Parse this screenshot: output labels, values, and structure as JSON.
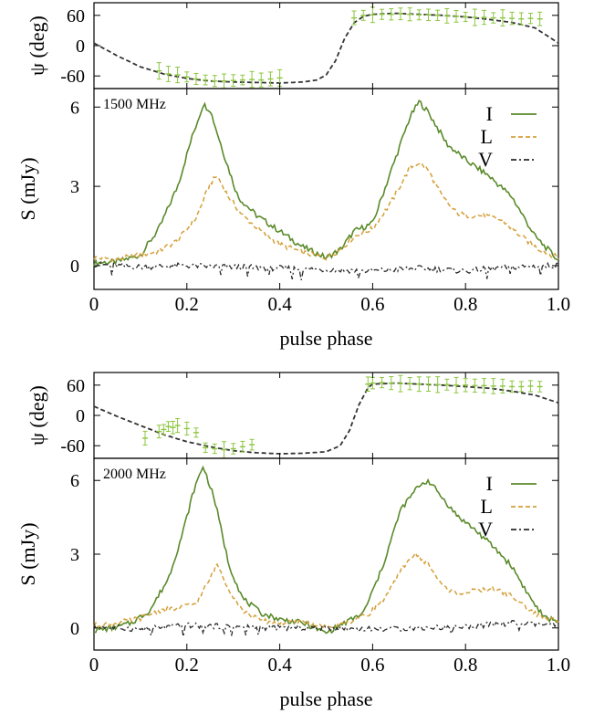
{
  "colors": {
    "I": "#5a8a2a",
    "L": "#d4a03a",
    "V": "#2a2a2a",
    "pa_points": "#8cc63f",
    "pa_model": "#333333"
  },
  "chart_data": [
    {
      "type": "line",
      "frequency_label": "1500 MHz",
      "xlabel": "pulse phase",
      "pa_ylabel": "ψ (deg)",
      "flux_ylabel": "S (mJy)",
      "xlim": [
        0,
        1
      ],
      "x_ticks": [
        "0",
        "0.2",
        "0.4",
        "0.6",
        "0.8",
        "1.0"
      ],
      "pa_ylim": [
        -85,
        85
      ],
      "pa_ticks": [
        "60",
        "0",
        "-60"
      ],
      "flux_ylim": [
        -0.9,
        6.7
      ],
      "flux_ticks": [
        "6",
        "3",
        "0"
      ],
      "legend": [
        {
          "key": "I",
          "label": "I"
        },
        {
          "key": "L",
          "label": "L"
        },
        {
          "key": "V",
          "label": "V"
        }
      ],
      "series": [
        {
          "key": "I",
          "x": [
            0,
            0.05,
            0.1,
            0.14,
            0.18,
            0.21,
            0.235,
            0.25,
            0.28,
            0.31,
            0.35,
            0.4,
            0.45,
            0.5,
            0.53,
            0.56,
            0.6,
            0.64,
            0.68,
            0.7,
            0.72,
            0.76,
            0.8,
            0.85,
            0.9,
            0.95,
            1.0
          ],
          "y": [
            0.1,
            0.15,
            0.4,
            1.4,
            3.0,
            4.8,
            6.1,
            5.9,
            4.2,
            2.6,
            1.9,
            1.3,
            0.7,
            0.3,
            0.6,
            1.3,
            1.6,
            3.6,
            5.6,
            6.2,
            5.8,
            4.6,
            4.0,
            3.4,
            2.6,
            1.1,
            0.2
          ]
        },
        {
          "key": "L",
          "x": [
            0,
            0.05,
            0.1,
            0.14,
            0.18,
            0.22,
            0.25,
            0.265,
            0.29,
            0.32,
            0.36,
            0.4,
            0.45,
            0.5,
            0.53,
            0.56,
            0.6,
            0.64,
            0.68,
            0.7,
            0.72,
            0.75,
            0.78,
            0.8,
            0.84,
            0.88,
            0.92,
            0.96,
            1.0
          ],
          "y": [
            0.3,
            0.25,
            0.4,
            0.55,
            0.95,
            1.8,
            3.1,
            3.4,
            2.6,
            1.9,
            1.3,
            0.8,
            0.5,
            0.3,
            0.6,
            1.1,
            1.4,
            2.4,
            3.7,
            3.9,
            3.6,
            2.6,
            2.0,
            1.9,
            1.9,
            1.7,
            1.1,
            0.6,
            0.3
          ]
        },
        {
          "key": "V",
          "x": [
            0,
            0.1,
            0.2,
            0.3,
            0.4,
            0.5,
            0.6,
            0.7,
            0.8,
            0.9,
            1.0
          ],
          "y": [
            0.05,
            -0.05,
            0.0,
            -0.05,
            -0.1,
            -0.15,
            -0.2,
            -0.1,
            -0.2,
            -0.05,
            0.0
          ]
        }
      ],
      "pa_model": {
        "x": [
          0,
          0.05,
          0.1,
          0.15,
          0.2,
          0.25,
          0.3,
          0.35,
          0.4,
          0.45,
          0.48,
          0.5,
          0.52,
          0.54,
          0.56,
          0.58,
          0.6,
          0.65,
          0.7,
          0.75,
          0.8,
          0.85,
          0.9,
          0.95,
          1.0
        ],
        "y": [
          5,
          -20,
          -42,
          -56,
          -65,
          -70,
          -72,
          -73,
          -74,
          -72,
          -68,
          -58,
          -30,
          15,
          45,
          58,
          62,
          64,
          62,
          60,
          57,
          52,
          46,
          35,
          5
        ]
      },
      "pa_points": {
        "x": [
          0.14,
          0.16,
          0.18,
          0.2,
          0.22,
          0.24,
          0.26,
          0.28,
          0.3,
          0.32,
          0.34,
          0.36,
          0.38,
          0.4,
          0.56,
          0.58,
          0.6,
          0.62,
          0.64,
          0.66,
          0.68,
          0.7,
          0.72,
          0.74,
          0.76,
          0.78,
          0.8,
          0.82,
          0.84,
          0.86,
          0.88,
          0.9,
          0.92,
          0.94,
          0.96
        ],
        "y": [
          -50,
          -56,
          -58,
          -62,
          -66,
          -68,
          -70,
          -70,
          -69,
          -68,
          -67,
          -68,
          -66,
          -64,
          55,
          60,
          61,
          62,
          62,
          63,
          62,
          61,
          61,
          60,
          59,
          58,
          57,
          56,
          56,
          55,
          55,
          54,
          53,
          54,
          53
        ]
      }
    },
    {
      "type": "line",
      "frequency_label": "2000 MHz",
      "xlabel": "pulse phase",
      "pa_ylabel": "ψ (deg)",
      "flux_ylabel": "S (mJy)",
      "xlim": [
        0,
        1
      ],
      "x_ticks": [
        "0",
        "0.2",
        "0.4",
        "0.6",
        "0.8",
        "1.0"
      ],
      "pa_ylim": [
        -85,
        85
      ],
      "pa_ticks": [
        "60",
        "0",
        "-60"
      ],
      "flux_ylim": [
        -0.9,
        6.9
      ],
      "flux_ticks": [
        "6",
        "3",
        "0"
      ],
      "legend": [
        {
          "key": "I",
          "label": "I"
        },
        {
          "key": "L",
          "label": "L"
        },
        {
          "key": "V",
          "label": "V"
        }
      ],
      "series": [
        {
          "key": "I",
          "x": [
            0,
            0.04,
            0.08,
            0.12,
            0.16,
            0.19,
            0.215,
            0.235,
            0.26,
            0.29,
            0.32,
            0.36,
            0.4,
            0.45,
            0.5,
            0.54,
            0.58,
            0.62,
            0.66,
            0.7,
            0.72,
            0.75,
            0.78,
            0.82,
            0.86,
            0.9,
            0.94,
            0.97,
            1.0
          ],
          "y": [
            -0.1,
            0.0,
            0.2,
            0.7,
            2.0,
            3.8,
            5.6,
            6.6,
            5.2,
            2.6,
            1.2,
            0.6,
            0.35,
            0.2,
            -0.2,
            0.2,
            0.6,
            2.4,
            4.8,
            5.8,
            6.0,
            5.3,
            4.6,
            4.0,
            3.3,
            2.5,
            1.2,
            0.4,
            0.3
          ]
        },
        {
          "key": "L",
          "x": [
            0,
            0.05,
            0.1,
            0.14,
            0.18,
            0.22,
            0.25,
            0.265,
            0.29,
            0.32,
            0.36,
            0.4,
            0.45,
            0.5,
            0.55,
            0.59,
            0.63,
            0.67,
            0.69,
            0.72,
            0.75,
            0.78,
            0.82,
            0.86,
            0.9,
            0.94,
            0.97,
            1.0
          ],
          "y": [
            0.1,
            0.2,
            0.4,
            0.7,
            0.8,
            1.0,
            2.0,
            2.6,
            1.6,
            0.7,
            0.3,
            0.2,
            0.25,
            0.0,
            0.25,
            0.55,
            1.3,
            2.6,
            3.0,
            2.6,
            1.7,
            1.4,
            1.5,
            1.6,
            1.3,
            0.7,
            0.4,
            0.3
          ]
        },
        {
          "key": "V",
          "x": [
            0,
            0.1,
            0.2,
            0.3,
            0.4,
            0.5,
            0.6,
            0.7,
            0.8,
            0.9,
            1.0
          ],
          "y": [
            0.05,
            -0.05,
            0.1,
            0.05,
            0.0,
            0.0,
            -0.05,
            0.0,
            0.05,
            0.2,
            0.1
          ]
        }
      ],
      "pa_model": {
        "x": [
          0,
          0.05,
          0.1,
          0.15,
          0.2,
          0.25,
          0.3,
          0.35,
          0.4,
          0.45,
          0.5,
          0.53,
          0.55,
          0.57,
          0.59,
          0.6,
          0.65,
          0.7,
          0.75,
          0.8,
          0.85,
          0.9,
          0.95,
          1.0
        ],
        "y": [
          18,
          -2,
          -20,
          -38,
          -52,
          -62,
          -70,
          -74,
          -76,
          -75,
          -72,
          -60,
          -30,
          20,
          55,
          62,
          64,
          62,
          60,
          57,
          54,
          48,
          40,
          25
        ]
      },
      "pa_points": {
        "x": [
          0.11,
          0.14,
          0.15,
          0.16,
          0.17,
          0.18,
          0.2,
          0.22,
          0.24,
          0.26,
          0.28,
          0.3,
          0.32,
          0.34,
          0.59,
          0.6,
          0.62,
          0.64,
          0.66,
          0.68,
          0.7,
          0.72,
          0.74,
          0.76,
          0.78,
          0.8,
          0.82,
          0.84,
          0.86,
          0.88,
          0.9,
          0.92,
          0.94,
          0.96
        ],
        "y": [
          -45,
          -32,
          -28,
          -22,
          -24,
          -20,
          -26,
          -34,
          -64,
          -66,
          -68,
          -66,
          -62,
          -58,
          62,
          64,
          65,
          64,
          63,
          63,
          62,
          62,
          61,
          61,
          60,
          60,
          59,
          59,
          58,
          58,
          57,
          57,
          58,
          57
        ]
      }
    }
  ]
}
